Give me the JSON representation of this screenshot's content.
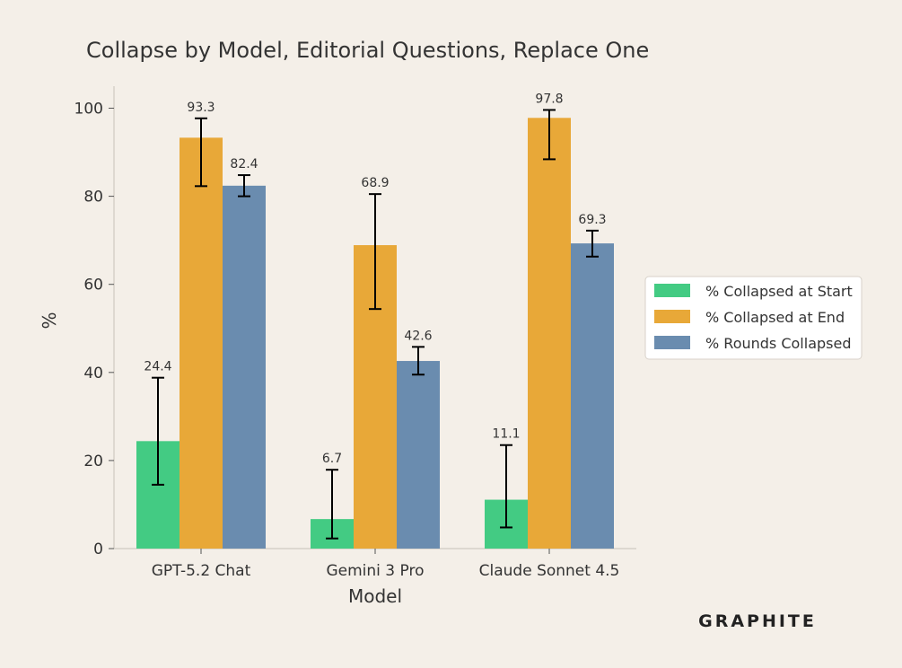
{
  "chart_data": {
    "type": "bar",
    "title": "Collapse by Model, Editorial Questions, Replace One",
    "xlabel": "Model",
    "ylabel": "%",
    "categories": [
      "GPT-5.2 Chat",
      "Gemini 3 Pro",
      "Claude Sonnet 4.5"
    ],
    "ylim": [
      0,
      105
    ],
    "yticks": [
      0,
      20,
      40,
      60,
      80,
      100
    ],
    "grid": false,
    "legend_position": "right",
    "series": [
      {
        "name": "% Collapsed at Start",
        "color": "#43cb83",
        "values": [
          24.4,
          6.7,
          11.1
        ],
        "error_low": [
          14.5,
          2.3,
          4.8
        ],
        "error_high": [
          38.8,
          17.9,
          23.5
        ],
        "labels": [
          "24.4",
          "6.7",
          "11.1"
        ]
      },
      {
        "name": "% Collapsed at End",
        "color": "#e8a838",
        "values": [
          93.3,
          68.9,
          97.8
        ],
        "error_low": [
          82.3,
          54.4,
          88.4
        ],
        "error_high": [
          97.7,
          80.5,
          99.6
        ],
        "labels": [
          "93.3",
          "68.9",
          "97.8"
        ]
      },
      {
        "name": "% Rounds Collapsed",
        "color": "#6a8caf",
        "values": [
          82.4,
          42.6,
          69.3
        ],
        "error_low": [
          80.0,
          39.5,
          66.3
        ],
        "error_high": [
          84.8,
          45.8,
          72.2
        ],
        "labels": [
          "82.4",
          "42.6",
          "69.3"
        ]
      }
    ]
  },
  "branding": {
    "logo_text": "GRAPHITE"
  }
}
